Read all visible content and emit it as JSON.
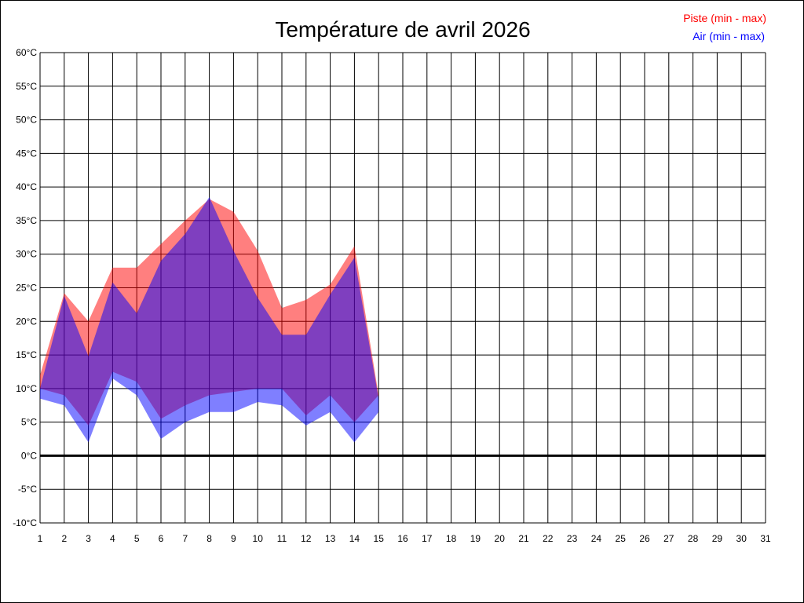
{
  "chart_data": {
    "type": "area",
    "title": "Température de avril 2026",
    "x": [
      1,
      2,
      3,
      4,
      5,
      6,
      7,
      8,
      9,
      10,
      11,
      12,
      13,
      14,
      15
    ],
    "x_ticks": [
      "1",
      "2",
      "3",
      "4",
      "5",
      "6",
      "7",
      "8",
      "9",
      "10",
      "11",
      "12",
      "13",
      "14",
      "15",
      "16",
      "17",
      "18",
      "19",
      "20",
      "21",
      "22",
      "23",
      "24",
      "25",
      "26",
      "27",
      "28",
      "29",
      "30",
      "31"
    ],
    "xlim": [
      1,
      31
    ],
    "y_ticks": [
      "-10°C",
      "-5°C",
      "0°C",
      "5°C",
      "10°C",
      "15°C",
      "20°C",
      "25°C",
      "30°C",
      "35°C",
      "40°C",
      "45°C",
      "50°C",
      "55°C",
      "60°C"
    ],
    "ylim": [
      -10,
      60
    ],
    "grid": true,
    "legend_position": "top-right",
    "series": [
      {
        "name": "Piste (min - max)",
        "color": "#ff0000",
        "min": [
          10,
          9,
          4.5,
          12.5,
          11,
          5.5,
          7.5,
          9,
          9.5,
          10,
          10,
          6,
          9,
          5,
          9
        ],
        "max": [
          12,
          24.2,
          20,
          28,
          28,
          31.5,
          35,
          38.2,
          36.3,
          30.5,
          22,
          23.2,
          25.5,
          31.2,
          9
        ]
      },
      {
        "name": "Air (min - max)",
        "color": "#0000ff",
        "min": [
          8.5,
          7.5,
          2,
          11.5,
          9,
          2.5,
          5,
          6.5,
          6.5,
          8,
          7.5,
          4.5,
          6.5,
          2,
          6.5
        ],
        "max": [
          10,
          23.8,
          14.8,
          25.8,
          21.2,
          29,
          33,
          38.5,
          30.5,
          23.5,
          18,
          18,
          24,
          29.5,
          8.5
        ]
      }
    ]
  }
}
